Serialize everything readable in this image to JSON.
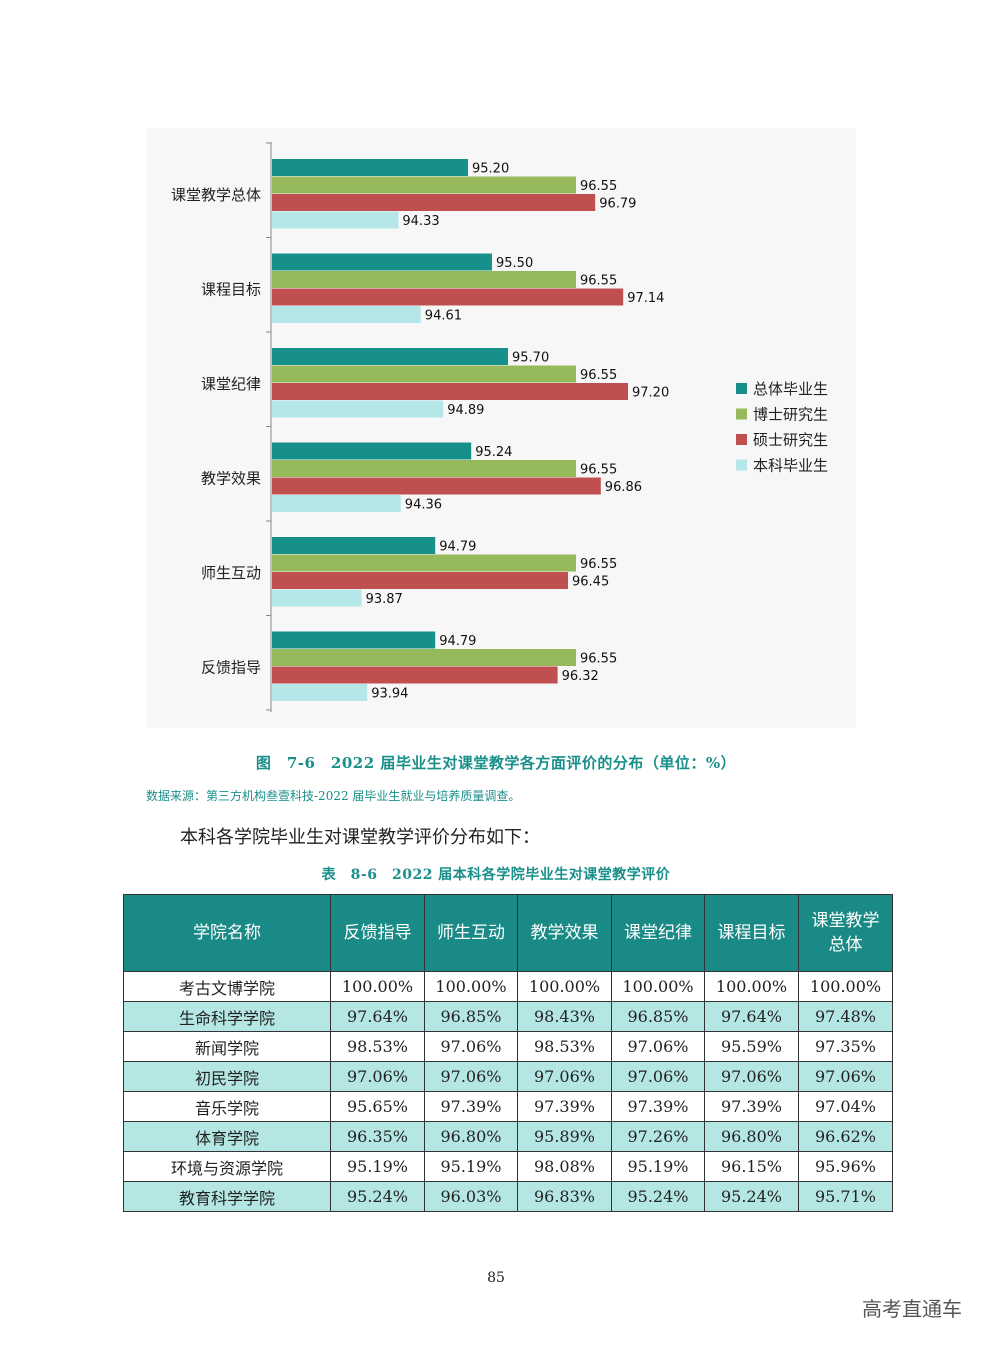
{
  "figure": {
    "caption": "图　7-6　2022 届毕业生对课堂教学各方面评价的分布（单位：%）",
    "source": "数据来源：第三方机构叁壹科技-2022 届毕业生就业与培养质量调查。"
  },
  "chart_data": {
    "type": "bar",
    "orientation": "horizontal",
    "title": "2022 届毕业生对课堂教学各方面评价的分布（单位：%）",
    "categories": [
      "课堂教学总体",
      "课程目标",
      "课堂纪律",
      "教学效果",
      "师生互动",
      "反馈指导"
    ],
    "series": [
      {
        "name": "总体毕业生",
        "color": "#17908b",
        "values": [
          95.2,
          95.5,
          95.7,
          95.24,
          94.79,
          94.79
        ]
      },
      {
        "name": "博士研究生",
        "color": "#96b95c",
        "values": [
          96.55,
          96.55,
          96.55,
          96.55,
          96.55,
          96.55
        ]
      },
      {
        "name": "硕士研究生",
        "color": "#c05050",
        "values": [
          96.79,
          97.14,
          97.2,
          96.86,
          96.45,
          96.32
        ]
      },
      {
        "name": "本科毕业生",
        "color": "#b5e6e8",
        "values": [
          94.33,
          94.61,
          94.89,
          94.36,
          93.87,
          93.94
        ]
      }
    ],
    "xlim": [
      92.75,
      97.9
    ],
    "legend": "right",
    "grid": false
  },
  "intro_text": "本科各学院毕业生对课堂教学评价分布如下：",
  "table": {
    "caption": "表　8-6　2022 届本科各学院毕业生对课堂教学评价",
    "headers": [
      "学院名称",
      "反馈指导",
      "师生互动",
      "教学效果",
      "课堂纪律",
      "课程目标",
      "课堂教学总体"
    ],
    "rows": [
      [
        "考古文博学院",
        "100.00%",
        "100.00%",
        "100.00%",
        "100.00%",
        "100.00%",
        "100.00%"
      ],
      [
        "生命科学学院",
        "97.64%",
        "96.85%",
        "98.43%",
        "96.85%",
        "97.64%",
        "97.48%"
      ],
      [
        "新闻学院",
        "98.53%",
        "97.06%",
        "98.53%",
        "97.06%",
        "95.59%",
        "97.35%"
      ],
      [
        "初民学院",
        "97.06%",
        "97.06%",
        "97.06%",
        "97.06%",
        "97.06%",
        "97.06%"
      ],
      [
        "音乐学院",
        "95.65%",
        "97.39%",
        "97.39%",
        "97.39%",
        "97.39%",
        "97.04%"
      ],
      [
        "体育学院",
        "96.35%",
        "96.80%",
        "95.89%",
        "97.26%",
        "96.80%",
        "96.62%"
      ],
      [
        "环境与资源学院",
        "95.19%",
        "95.19%",
        "98.08%",
        "95.19%",
        "96.15%",
        "95.96%"
      ],
      [
        "教育科学学院",
        "95.24%",
        "96.03%",
        "96.83%",
        "95.24%",
        "95.24%",
        "95.71%"
      ]
    ]
  },
  "page_number": "85",
  "watermark": "高考直通车"
}
